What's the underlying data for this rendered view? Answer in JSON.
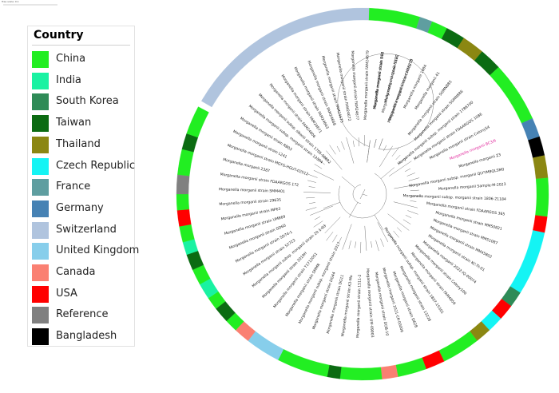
{
  "legend": {
    "title": "Country",
    "items": [
      {
        "key": "china",
        "label": "China",
        "color": "#22ee22"
      },
      {
        "key": "india",
        "label": "India",
        "color": "#19f2a2"
      },
      {
        "key": "south_korea",
        "label": "South Korea",
        "color": "#2e8b57"
      },
      {
        "key": "taiwan",
        "label": "Taiwan",
        "color": "#0b6b12"
      },
      {
        "key": "thailand",
        "label": "Thailand",
        "color": "#8b8712"
      },
      {
        "key": "czech",
        "label": "Czech Republic",
        "color": "#14f4f4"
      },
      {
        "key": "france",
        "label": "France",
        "color": "#5f9ea0"
      },
      {
        "key": "germany",
        "label": "Germany",
        "color": "#4682b4"
      },
      {
        "key": "switzerland",
        "label": "Switzerland",
        "color": "#b0c4de"
      },
      {
        "key": "uk",
        "label": "United Kingdom",
        "color": "#87ceeb"
      },
      {
        "key": "canada",
        "label": "Canada",
        "color": "#fa8072"
      },
      {
        "key": "usa",
        "label": "USA",
        "color": "#ff0000"
      },
      {
        "key": "reference",
        "label": "Reference",
        "color": "#808080"
      },
      {
        "key": "bangladesh",
        "label": "Bangladesh",
        "color": "#000000"
      }
    ]
  },
  "scale_label": "Tree scale: 0.1",
  "ring": [
    {
      "c": "china",
      "a": -88,
      "b": -72
    },
    {
      "c": "france",
      "a": -72,
      "b": -68
    },
    {
      "c": "china",
      "a": -68,
      "b": -63
    },
    {
      "c": "taiwan",
      "a": -63,
      "b": -57
    },
    {
      "c": "thailand",
      "a": -57,
      "b": -50
    },
    {
      "c": "taiwan",
      "a": -50,
      "b": -43
    },
    {
      "c": "china",
      "a": -43,
      "b": -24
    },
    {
      "c": "germany",
      "a": -24,
      "b": -18
    },
    {
      "c": "bangladesh",
      "a": -18,
      "b": -12
    },
    {
      "c": "thailand",
      "a": -12,
      "b": -5
    },
    {
      "c": "china",
      "a": -5,
      "b": 7
    },
    {
      "c": "usa",
      "a": 7,
      "b": 12
    },
    {
      "c": "czech",
      "a": 12,
      "b": 32
    },
    {
      "c": "south_korea",
      "a": 32,
      "b": 37
    },
    {
      "c": "usa",
      "a": 37,
      "b": 42
    },
    {
      "c": "czech",
      "a": 42,
      "b": 47
    },
    {
      "c": "thailand",
      "a": 47,
      "b": 52
    },
    {
      "c": "china",
      "a": 52,
      "b": 64
    },
    {
      "c": "usa",
      "a": 64,
      "b": 70
    },
    {
      "c": "china",
      "a": 70,
      "b": 79
    },
    {
      "c": "canada",
      "a": 79,
      "b": 84
    },
    {
      "c": "china",
      "a": 84,
      "b": 97
    },
    {
      "c": "taiwan",
      "a": 97,
      "b": 101
    },
    {
      "c": "china",
      "a": 101,
      "b": 117
    },
    {
      "c": "uk",
      "a": 117,
      "b": 128
    },
    {
      "c": "canada",
      "a": 128,
      "b": 133
    },
    {
      "c": "china",
      "a": 133,
      "b": 137
    },
    {
      "c": "taiwan",
      "a": 137,
      "b": 142
    },
    {
      "c": "china",
      "a": 142,
      "b": 146
    },
    {
      "c": "india",
      "a": 146,
      "b": 151
    },
    {
      "c": "china",
      "a": 151,
      "b": 156
    },
    {
      "c": "taiwan",
      "a": 156,
      "b": 161
    },
    {
      "c": "india",
      "a": 161,
      "b": 165
    },
    {
      "c": "china",
      "a": 165,
      "b": 170
    },
    {
      "c": "usa",
      "a": 170,
      "b": 175
    },
    {
      "c": "china",
      "a": 175,
      "b": 180
    },
    {
      "c": "reference",
      "a": 180,
      "b": 186
    },
    {
      "c": "china",
      "a": 186,
      "b": 194
    },
    {
      "c": "taiwan",
      "a": 194,
      "b": 199
    },
    {
      "c": "china",
      "a": 199,
      "b": 208
    },
    {
      "c": "switzerland",
      "a": 210,
      "b": 272
    }
  ],
  "leaves": [
    {
      "label": "Morganella morganii strain D61",
      "a": -82
    },
    {
      "label": "Morganella morganii NBRC",
      "a": -76
    },
    {
      "label": "Morganella morganii strain Colony75",
      "a": -70
    },
    {
      "label": "Morganella morganii 1884",
      "a": -64
    },
    {
      "label": "Morganella morganii 41",
      "a": -58
    },
    {
      "label": "Morganella morganii strain SGMNB85",
      "a": -52
    },
    {
      "label": "Morganella morganii strain SGMNB86",
      "a": -46
    },
    {
      "label": "Morganella morganii subsp. morganii strain 1786700",
      "a": -40
    },
    {
      "label": "Morganella morganii strain FDAARGOS 1086",
      "a": -34
    },
    {
      "label": "Morganella morganii strain Colony54",
      "a": -28
    },
    {
      "label": "Morganella morganii BC3/6",
      "a": -22,
      "hl": true
    },
    {
      "label": "Morganella morganii Z3",
      "a": -16
    },
    {
      "label": "Morganella morganii subsp. morganii QLYYM9QLSM0",
      "a": -10
    },
    {
      "label": "Morganella morganii Sample-M-2023",
      "a": -4
    },
    {
      "label": "Morganella morganii subsp. morganii strain 1806-21184",
      "a": 2
    },
    {
      "label": "Morganella morganii strain FDAARGOS 365",
      "a": 8
    },
    {
      "label": "Morganella morganii strain MM50821",
      "a": 14
    },
    {
      "label": "Morganella morganii strain MM51087",
      "a": 20
    },
    {
      "label": "Morganella morganii strain MM45802",
      "a": 26
    },
    {
      "label": "Morganella morganii strain KC-Tt-01",
      "a": 32
    },
    {
      "label": "Morganella morganii 2022-IQ-00074",
      "a": 38
    },
    {
      "label": "Morganella morganii strain Colony100",
      "a": 44
    },
    {
      "label": "Morganella morganii strain FAM4859",
      "a": 50
    },
    {
      "label": "Morganella morganii subsp. morganii strain 1807-15301",
      "a": 56
    },
    {
      "label": "Morganella morganii strain 13228",
      "a": 62
    },
    {
      "label": "Morganella morganii strain D628",
      "a": 68
    },
    {
      "label": "Morganella morganii 2021-CK-00006",
      "a": 74
    },
    {
      "label": "Morganella morganii strain DOB-10",
      "a": 80
    },
    {
      "label": "Morganella morganii strain UM-09003",
      "a": 86
    },
    {
      "label": "Morganella morganii strain 1511-2",
      "a": 92
    },
    {
      "label": "Morganella morganii strain K3-Mo",
      "a": 98
    },
    {
      "label": "Morganella morganii strain DG11",
      "a": 104
    },
    {
      "label": "Morganella morganii strain DG44",
      "a": 110
    },
    {
      "label": "Morganella morganii subsp. morganii strain 2017",
      "a": 116
    },
    {
      "label": "Morganella morganii strain SMMR",
      "a": 122
    },
    {
      "label": "Morganella morganii strain T1712051",
      "a": 128
    },
    {
      "label": "Morganella morganii strain 2019H",
      "a": 134
    },
    {
      "label": "Morganella morganii subsp. morganii strain 20 1-03",
      "a": 140
    },
    {
      "label": "Morganella morganii strain 52723",
      "a": 146
    },
    {
      "label": "Morganella morganii strain SD74-1",
      "a": 152
    },
    {
      "label": "Morganella morganii strain GD60",
      "a": 158
    },
    {
      "label": "Morganella morganii strain UM869",
      "a": 164
    },
    {
      "label": "Morganella morganii strain MP63",
      "a": 170
    },
    {
      "label": "Morganella morganii strain 29635",
      "a": 176
    },
    {
      "label": "Morganella morganii strain SMM401",
      "a": 182
    },
    {
      "label": "Morganella morganii strain FDAARGOS 172",
      "a": 188
    },
    {
      "label": "Morganella morganii 2387",
      "a": 194
    },
    {
      "label": "Morganella morganii strain MGYG-HGUT-02512",
      "a": 200
    },
    {
      "label": "Morganella morganii strain L241",
      "a": 206
    },
    {
      "label": "Morganella morganii strain RB03",
      "a": 212
    },
    {
      "label": "Morganella morganii subsp. morganii strain 12304",
      "a": 218
    },
    {
      "label": "Morganella morganii subsp. sibonii strain 1705-00892",
      "a": 224
    },
    {
      "label": "Morganella morganii strain FAM24606",
      "a": 230
    },
    {
      "label": "Morganella morganii strain FAM24671",
      "a": 236
    },
    {
      "label": "Morganella morganii strain FAM24663",
      "a": 242
    },
    {
      "label": "Morganella morganii strain FAM24668",
      "a": 248
    },
    {
      "label": "Morganella morganii strain FAM24675",
      "a": 254
    },
    {
      "label": "Morganella morganii strain FAM24672",
      "a": 260
    },
    {
      "label": "Morganella morganii strain FAM24677",
      "a": 266
    },
    {
      "label": "Morganella morganii strain FAM24679",
      "a": 272
    },
    {
      "label": "Morganella morganii strain 418",
      "a": 278
    },
    {
      "label": "Morganella morganii strain 1122",
      "a": 284
    },
    {
      "label": "Morganella morganii strain H7S218",
      "a": 290
    }
  ]
}
